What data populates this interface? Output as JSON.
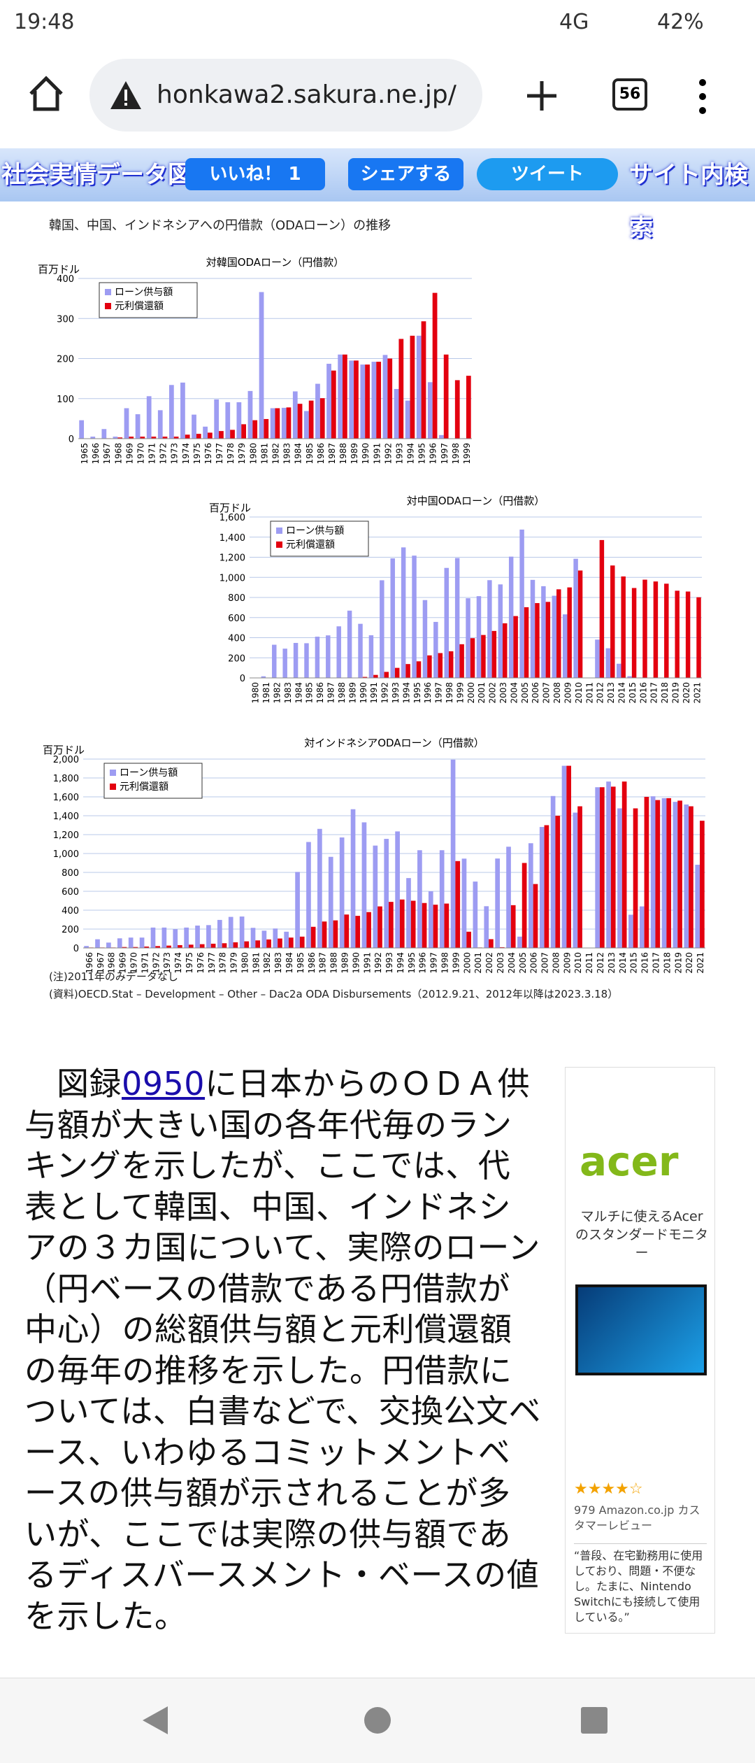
{
  "status": {
    "time": "19:48",
    "network": "4G",
    "battery": "42%"
  },
  "browser": {
    "url": "honkawa2.sakura.ne.jp/",
    "tabs": "56"
  },
  "banner": {
    "logo": "社会実情データ図録",
    "like": "いいね！ 1",
    "share": "シェアする",
    "tweet": "ツイート",
    "search": "サイト内検索"
  },
  "figure": {
    "heading": "韓国、中国、インドネシアへの円借款（ODAローン）の推移",
    "notes": [
      "(注)2011年のみデータなし",
      "(資料)OECD.Stat – Development – Other – Dac2a ODA Disbursements（2012.9.21、2012年以降は2023.3.18）"
    ]
  },
  "chart_data": [
    {
      "type": "bar",
      "title": "対韓国ODAローン（円借款）",
      "y_label": "百万ドル",
      "categories": [
        "1965",
        "1966",
        "1967",
        "1968",
        "1969",
        "1970",
        "1971",
        "1972",
        "1973",
        "1974",
        "1975",
        "1976",
        "1977",
        "1978",
        "1979",
        "1980",
        "1981",
        "1982",
        "1983",
        "1984",
        "1985",
        "1986",
        "1987",
        "1988",
        "1989",
        "1990",
        "1991",
        "1992",
        "1993",
        "1994",
        "1995",
        "1996",
        "1997",
        "1998",
        "1999"
      ],
      "series": [
        {
          "name": "ローン供与額",
          "color": "#9d9cf2",
          "values": [
            46,
            5,
            24,
            5,
            76,
            61,
            106,
            71,
            134,
            140,
            60,
            30,
            98,
            91,
            91,
            119,
            366,
            76,
            77,
            118,
            69,
            137,
            187,
            210,
            195,
            185,
            192,
            209,
            124,
            95,
            257,
            141,
            9,
            0,
            1
          ]
        },
        {
          "name": "元利償還額",
          "color": "#e3000f",
          "values": [
            0,
            0,
            1,
            3,
            5,
            5,
            5,
            5,
            5,
            10,
            12,
            15,
            19,
            22,
            36,
            46,
            49,
            76,
            78,
            87,
            95,
            101,
            170,
            210,
            195,
            185,
            192,
            200,
            249,
            257,
            293,
            364,
            210,
            146,
            157
          ]
        }
      ],
      "ylim": [
        0,
        400
      ],
      "yticks": [
        0,
        100,
        200,
        300,
        400
      ],
      "grid": true
    },
    {
      "type": "bar",
      "title": "対中国ODAローン（円借款）",
      "y_label": "百万ドル",
      "categories": [
        "1980",
        "1981",
        "1982",
        "1983",
        "1984",
        "1985",
        "1986",
        "1987",
        "1988",
        "1989",
        "1990",
        "1991",
        "1992",
        "1993",
        "1994",
        "1995",
        "1996",
        "1997",
        "1998",
        "1999",
        "2000",
        "2001",
        "2002",
        "2003",
        "2004",
        "2005",
        "2006",
        "2007",
        "2008",
        "2009",
        "2010",
        "2011",
        "2012",
        "2013",
        "2014",
        "2015",
        "2016",
        "2017",
        "2018",
        "2019",
        "2020",
        "2021"
      ],
      "series": [
        {
          "name": "ローン供与額",
          "color": "#9d9cf2",
          "values": [
            1,
            16,
            330,
            291,
            348,
            345,
            410,
            423,
            513,
            669,
            538,
            424,
            971,
            1189,
            1298,
            1216,
            774,
            557,
            1094,
            1192,
            792,
            813,
            972,
            930,
            1206,
            1475,
            975,
            912,
            817,
            632,
            1185,
            null,
            381,
            295,
            141,
            17,
            4,
            0,
            0,
            0,
            0,
            0
          ]
        },
        {
          "name": "元利償還額",
          "color": "#e3000f",
          "values": [
            0,
            0,
            0,
            0,
            0,
            0,
            0,
            0,
            1,
            1,
            10,
            30,
            60,
            100,
            138,
            165,
            224,
            247,
            265,
            335,
            395,
            427,
            467,
            543,
            615,
            703,
            744,
            756,
            881,
            900,
            1068,
            null,
            1371,
            1118,
            1009,
            894,
            977,
            959,
            937,
            867,
            859,
            802
          ]
        }
      ],
      "ylim": [
        0,
        1600
      ],
      "yticks": [
        0,
        200,
        400,
        600,
        800,
        {
          "value": 1000,
          "label": "1,000"
        },
        {
          "value": 1200,
          "label": "1,200"
        },
        {
          "value": 1400,
          "label": "1,400"
        },
        {
          "value": 1600,
          "label": "1,600"
        }
      ],
      "grid": true
    },
    {
      "type": "bar",
      "title": "対インドネシアODAローン（円借款）",
      "y_label": "百万ドル",
      "categories": [
        "1966",
        "1967",
        "1968",
        "1969",
        "1970",
        "1971",
        "1972",
        "1973",
        "1974",
        "1975",
        "1976",
        "1977",
        "1978",
        "1979",
        "1980",
        "1981",
        "1982",
        "1983",
        "1984",
        "1985",
        "1986",
        "1987",
        "1988",
        "1989",
        "1990",
        "1991",
        "1992",
        "1993",
        "1994",
        "1995",
        "1996",
        "1997",
        "1998",
        "1999",
        "2000",
        "2001",
        "2002",
        "2003",
        "2004",
        "2005",
        "2006",
        "2007",
        "2008",
        "2009",
        "2010",
        "2011",
        "2012",
        "2013",
        "2014",
        "2015",
        "2016",
        "2017",
        "2018",
        "2019",
        "2020",
        "2021"
      ],
      "series": [
        {
          "name": "ローン供与額",
          "color": "#9d9cf2",
          "values": [
            21,
            92,
            57,
            102,
            110,
            110,
            216,
            216,
            199,
            216,
            237,
            242,
            297,
            329,
            333,
            213,
            183,
            206,
            172,
            805,
            1122,
            1261,
            965,
            1170,
            1469,
            1330,
            1084,
            1155,
            1234,
            740,
            1035,
            600,
            1035,
            1994,
            946,
            703,
            442,
            947,
            1072,
            120,
            1109,
            1281,
            1609,
            1929,
            1433,
            null,
            1702,
            1762,
            1478,
            352,
            440,
            1606,
            1586,
            1547,
            1519,
            881
          ]
        },
        {
          "name": "元利償還額",
          "color": "#e3000f",
          "values": [
            5,
            5,
            5,
            10,
            10,
            15,
            20,
            25,
            30,
            35,
            40,
            45,
            50,
            60,
            70,
            80,
            90,
            100,
            110,
            120,
            224,
            280,
            292,
            354,
            340,
            380,
            440,
            488,
            513,
            500,
            476,
            458,
            470,
            920,
            172,
            5,
            93,
            8,
            453,
            900,
            677,
            1300,
            1400,
            1929,
            1500,
            null,
            1702,
            1708,
            1762,
            1478,
            1600,
            1566,
            1586,
            1560,
            1500,
            1347
          ]
        }
      ],
      "ylim": [
        0,
        2000
      ],
      "yticks": [
        0,
        200,
        400,
        600,
        800,
        {
          "value": 1000,
          "label": "1,000"
        },
        {
          "value": 1200,
          "label": "1,200"
        },
        {
          "value": 1400,
          "label": "1,400"
        },
        {
          "value": 1600,
          "label": "1,600"
        },
        {
          "value": 1800,
          "label": "1,800"
        },
        {
          "value": 2000,
          "label": "2,000"
        }
      ],
      "grid": true
    }
  ],
  "article": {
    "before": "図録",
    "link": "0950",
    "after": "に日本からのＯＤＡ供与額が大きい国の各年代毎のランキングを示したが、ここでは、代表として韓国、中国、インドネシアの３カ国について、実際のローン（円ベースの借款である円借款が中心）の総額供与額と元利償還額の毎年の推移を示した。円借款については、白書などで、交換公文ベース、いわゆるコミットメントベースの供与額が示されることが多いが、ここでは実際の供与額であるディスバースメント・ベースの値を示した。"
  },
  "ad": {
    "brand": "acer",
    "caption": "マルチに使えるAcerのスタンダードモニター",
    "reviews": "979 Amazon.co.jp カスタマーレビュー",
    "quote": "“普段、在宅勤務用に使用しており、問題・不便なし。たまに、Nintendo Switchにも接続して使用している。”"
  }
}
